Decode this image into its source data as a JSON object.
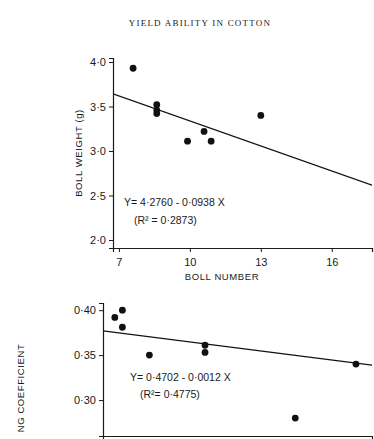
{
  "chart_data": [
    {
      "type": "scatter",
      "title": "YIELD ABILITY IN COTTON",
      "x_label": "BOLL NUMBER",
      "y_label": "BOLL WEIGHT (g)",
      "x": [
        7.6,
        8.6,
        8.6,
        8.6,
        9.9,
        10.6,
        10.9,
        13.0
      ],
      "y": [
        3.93,
        3.52,
        3.46,
        3.42,
        3.11,
        3.22,
        3.11,
        3.4
      ],
      "xlim": [
        6.75,
        17.7
      ],
      "ylim": [
        1.91,
        4.045
      ],
      "xticks": [
        7,
        10,
        13,
        16
      ],
      "yticks": [
        {
          "value": 2.0,
          "label": "2·0"
        },
        {
          "value": 2.5,
          "label": "2·5"
        },
        {
          "value": 3.0,
          "label": "3·0"
        },
        {
          "value": 3.5,
          "label": "3·5"
        },
        {
          "value": 4.0,
          "label": "4·0"
        }
      ],
      "regression": {
        "intercept": 4.276,
        "slope": -0.0938
      },
      "annotations": [
        "Y= 4·2760 - 0·0938 X",
        "(R² = 0·2873)"
      ],
      "color": "#111111",
      "marker": "circle"
    },
    {
      "type": "scatter",
      "y_label": "NG COEFFICIENT",
      "x": [
        79.0,
        79.9,
        79.9,
        83.1,
        89.7,
        89.7,
        100.4,
        107.6
      ],
      "y": [
        0.392,
        0.4,
        0.381,
        0.35,
        0.361,
        0.353,
        0.28,
        0.34
      ],
      "xlim": [
        77.6,
        109.5
      ],
      "ylim": [
        0.26,
        0.408
      ],
      "yticks": [
        {
          "value": 0.3,
          "label": "0·30"
        },
        {
          "value": 0.35,
          "label": "0·35"
        },
        {
          "value": 0.4,
          "label": "0·40"
        }
      ],
      "tick_labels": "y",
      "regression": {
        "intercept": 0.4702,
        "slope": -0.0012
      },
      "annotations": [
        "Y= 0·4702 - 0·0012 X",
        "(R²= 0·4775)"
      ],
      "color": "#111111",
      "marker": "circle"
    }
  ]
}
